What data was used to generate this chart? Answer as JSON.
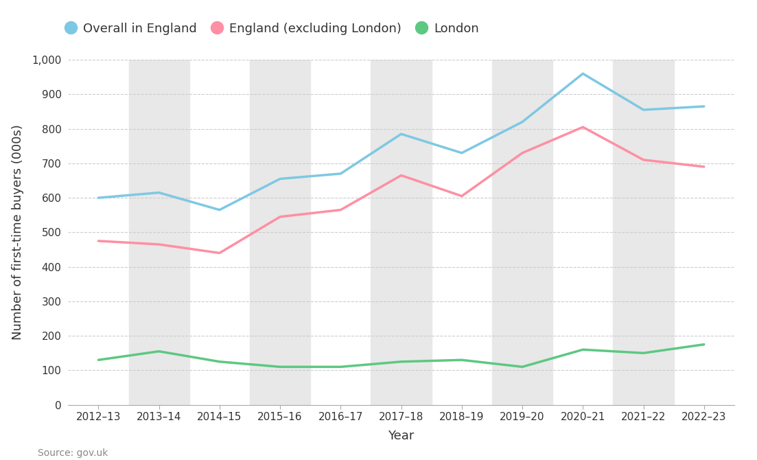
{
  "years": [
    "2012–13",
    "2013–14",
    "2014–15",
    "2015–16",
    "2016–17",
    "2017–18",
    "2018–19",
    "2019–20",
    "2020–21",
    "2021–22",
    "2022–23"
  ],
  "overall_england": [
    600,
    615,
    565,
    655,
    670,
    785,
    730,
    820,
    960,
    855,
    865
  ],
  "england_excl_london": [
    475,
    465,
    440,
    545,
    565,
    665,
    605,
    730,
    805,
    710,
    690
  ],
  "london": [
    130,
    155,
    125,
    110,
    110,
    125,
    130,
    110,
    160,
    150,
    175
  ],
  "line_colors": {
    "overall": "#7EC8E3",
    "excl_london": "#FF8FA3",
    "london": "#5DC882"
  },
  "line_width": 2.5,
  "ylabel": "Number of first-time buyers (000s)",
  "xlabel": "Year",
  "source": "Source: gov.uk",
  "legend_labels": [
    "Overall in England",
    "England (excluding London)",
    "London"
  ],
  "ylim": [
    0,
    1000
  ],
  "yticks": [
    0,
    100,
    200,
    300,
    400,
    500,
    600,
    700,
    800,
    900,
    1000
  ],
  "ytick_labels": [
    "0",
    "100",
    "200",
    "300",
    "400",
    "500",
    "600",
    "700",
    "800",
    "900",
    "1,000"
  ],
  "background_color": "#FFFFFF",
  "band_color": "#E8E8E8",
  "grid_color": "#CCCCCC",
  "axis_fontsize": 13,
  "tick_fontsize": 11,
  "legend_fontsize": 13,
  "shaded_indices": [
    1,
    3,
    5,
    7,
    9
  ]
}
